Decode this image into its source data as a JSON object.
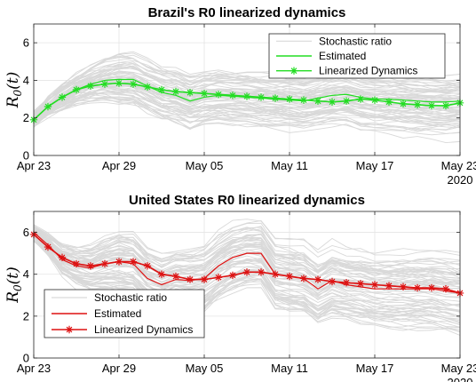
{
  "chart_data": [
    {
      "type": "line",
      "title": "Brazil's R0 linearized dynamics",
      "ylabel": "R0(t)",
      "ylabel_math": {
        "base": "R",
        "sub": "0",
        "arg": "(t)"
      },
      "xlabel": "",
      "x_tick_labels": [
        "Apr 23",
        "Apr 29",
        "May 05",
        "May 11",
        "May 17",
        "May 23"
      ],
      "x_year": "2020",
      "x_range": [
        0,
        30
      ],
      "ylim": [
        0,
        7
      ],
      "y_ticks": [
        0,
        2,
        4,
        6
      ],
      "grid": true,
      "legend_position": "top-right",
      "legend": [
        "Stochastic ratio",
        "Estimated",
        "Linearized Dynamics"
      ],
      "colors": {
        "stochastic": "#d9d9d9",
        "main": "#22dd22"
      },
      "series": [
        {
          "name": "Estimated",
          "style": "line",
          "x": [
            0,
            1,
            2,
            3,
            4,
            5,
            6,
            7,
            8,
            9,
            10,
            11,
            12,
            13,
            14,
            15,
            16,
            17,
            18,
            19,
            20,
            21,
            22,
            23,
            24,
            25,
            26,
            27,
            28,
            29,
            30
          ],
          "values": [
            1.9,
            2.6,
            3.1,
            3.5,
            3.8,
            4.0,
            4.05,
            4.05,
            3.7,
            3.35,
            3.2,
            2.9,
            3.1,
            3.2,
            3.15,
            3.1,
            3.05,
            3.0,
            2.95,
            2.9,
            3.05,
            3.2,
            3.25,
            3.1,
            3.0,
            3.0,
            2.95,
            2.9,
            2.85,
            2.85,
            2.9
          ]
        },
        {
          "name": "Linearized Dynamics",
          "style": "line-star",
          "x": [
            0,
            1,
            2,
            3,
            4,
            5,
            6,
            7,
            8,
            9,
            10,
            11,
            12,
            13,
            14,
            15,
            16,
            17,
            18,
            19,
            20,
            21,
            22,
            23,
            24,
            25,
            26,
            27,
            28,
            29,
            30
          ],
          "values": [
            1.9,
            2.6,
            3.1,
            3.5,
            3.7,
            3.8,
            3.85,
            3.8,
            3.65,
            3.5,
            3.4,
            3.35,
            3.3,
            3.25,
            3.2,
            3.15,
            3.1,
            3.05,
            3.0,
            2.95,
            2.9,
            2.85,
            2.9,
            3.0,
            2.95,
            2.85,
            2.75,
            2.7,
            2.65,
            2.65,
            2.8
          ]
        }
      ]
    },
    {
      "type": "line",
      "title": "United States R0 linearized dynamics",
      "ylabel": "R0(t)",
      "ylabel_math": {
        "base": "R",
        "sub": "0",
        "arg": "(t)"
      },
      "xlabel": "",
      "x_tick_labels": [
        "Apr 23",
        "Apr 29",
        "May 05",
        "May 11",
        "May 17",
        "May 23"
      ],
      "x_year": "2020",
      "x_range": [
        0,
        30
      ],
      "ylim": [
        0,
        7
      ],
      "y_ticks": [
        0,
        2,
        4,
        6
      ],
      "grid": true,
      "legend_position": "bottom-left",
      "legend": [
        "Stochastic ratio",
        "Estimated",
        "Linearized Dynamics"
      ],
      "colors": {
        "stochastic": "#d9d9d9",
        "main": "#dd1111"
      },
      "series": [
        {
          "name": "Estimated",
          "style": "line",
          "x": [
            0,
            1,
            2,
            3,
            4,
            5,
            6,
            7,
            8,
            9,
            10,
            11,
            12,
            13,
            14,
            15,
            16,
            17,
            18,
            19,
            20,
            21,
            22,
            23,
            24,
            25,
            26,
            27,
            28,
            29,
            30
          ],
          "values": [
            6.0,
            5.4,
            4.7,
            4.4,
            4.3,
            4.5,
            4.6,
            4.5,
            3.8,
            3.5,
            3.75,
            3.7,
            3.8,
            4.4,
            4.8,
            5.0,
            5.0,
            4.0,
            3.9,
            3.8,
            3.3,
            3.7,
            3.5,
            3.4,
            3.3,
            3.3,
            3.3,
            3.3,
            3.3,
            3.2,
            3.1
          ]
        },
        {
          "name": "Linearized Dynamics",
          "style": "line-star",
          "x": [
            0,
            1,
            2,
            3,
            4,
            5,
            6,
            7,
            8,
            9,
            10,
            11,
            12,
            13,
            14,
            15,
            16,
            17,
            18,
            19,
            20,
            21,
            22,
            23,
            24,
            25,
            26,
            27,
            28,
            29,
            30
          ],
          "values": [
            5.9,
            5.3,
            4.8,
            4.5,
            4.4,
            4.5,
            4.6,
            4.6,
            4.4,
            4.0,
            3.9,
            3.75,
            3.75,
            3.85,
            3.95,
            4.1,
            4.1,
            4.0,
            3.9,
            3.8,
            3.75,
            3.65,
            3.6,
            3.55,
            3.5,
            3.45,
            3.4,
            3.35,
            3.35,
            3.3,
            3.1
          ]
        }
      ]
    }
  ]
}
